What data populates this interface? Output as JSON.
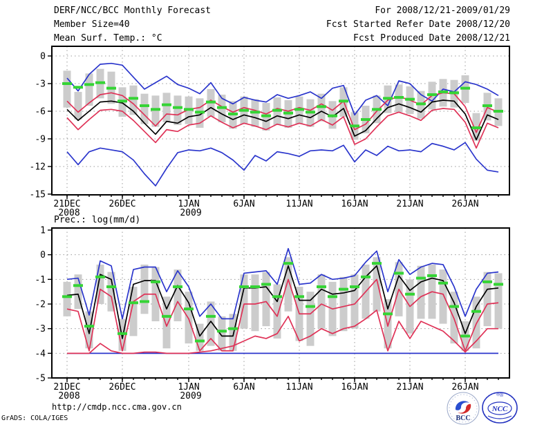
{
  "header": {
    "title": "DERF/NCC/BCC Monthly Forecast",
    "member_size": "Member Size=40",
    "for_range": "For 2008/12/21-2009/01/29",
    "refer_date": "Fcst Started Refer Date 2008/12/20",
    "produced_date": "Fcst Produced Date 2008/12/21"
  },
  "footer": {
    "url": "http://cmdp.ncc.cma.gov.cn",
    "grads_credit": "GrADS: COLA/IGES",
    "bcc_logo_text": "BCC",
    "ncc_logo_text": "NCC"
  },
  "colors": {
    "blue": "#2a35cc",
    "red": "#df3156",
    "black": "#000000",
    "clim_green": "#35d435",
    "bar_gray": "#cccccc",
    "grid_gray": "#999999"
  },
  "chart_data": [
    {
      "type": "line",
      "name": "temperature",
      "title": "Mean Surf. Temp.: °C",
      "x_start": "2008/12/21",
      "x_end": "2009/01/29",
      "n_days": 40,
      "yticks": [
        0,
        -3,
        -6,
        -9,
        -12,
        -15
      ],
      "ylim": [
        -15,
        0.8
      ],
      "grid": true,
      "x_ticks": [
        {
          "day": 0,
          "label": "21DEC",
          "sub": "2008"
        },
        {
          "day": 5,
          "label": "26DEC"
        },
        {
          "day": 11,
          "label": "1JAN",
          "sub": "2009"
        },
        {
          "day": 16,
          "label": "6JAN"
        },
        {
          "day": 21,
          "label": "11JAN"
        },
        {
          "day": 26,
          "label": "16JAN"
        },
        {
          "day": 31,
          "label": "21JAN"
        },
        {
          "day": 36,
          "label": "26JAN"
        }
      ],
      "series": [
        {
          "name": "ensemble-max",
          "color": "blue",
          "values": [
            -2.4,
            -3.8,
            -2.0,
            -0.9,
            -0.8,
            -1.0,
            -2.3,
            -3.6,
            -2.9,
            -2.2,
            -3.1,
            -3.5,
            -4.1,
            -2.9,
            -4.6,
            -5.2,
            -4.5,
            -4.8,
            -5.0,
            -4.2,
            -4.6,
            -4.3,
            -3.9,
            -4.6,
            -3.5,
            -3.2,
            -6.4,
            -4.8,
            -4.3,
            -5.4,
            -2.7,
            -3.0,
            -4.2,
            -4.9,
            -3.6,
            -3.9,
            -2.8,
            -3.1,
            -3.6,
            -4.3
          ]
        },
        {
          "name": "ensemble-min",
          "color": "blue",
          "values": [
            -10.4,
            -11.8,
            -10.4,
            -10.0,
            -10.2,
            -10.4,
            -11.3,
            -12.8,
            -14.1,
            -12.2,
            -10.5,
            -10.2,
            -10.3,
            -10.0,
            -10.5,
            -11.3,
            -12.4,
            -10.8,
            -11.4,
            -10.4,
            -10.6,
            -10.9,
            -10.3,
            -10.2,
            -10.3,
            -9.7,
            -11.5,
            -10.2,
            -10.8,
            -9.8,
            -10.3,
            -10.2,
            -10.4,
            -9.5,
            -9.8,
            -10.2,
            -9.4,
            -11.2,
            -12.4,
            -12.6
          ]
        },
        {
          "name": "upper-quartile",
          "color": "red",
          "values": [
            -4.9,
            -6.1,
            -5.1,
            -4.2,
            -4.0,
            -4.3,
            -5.2,
            -6.4,
            -7.6,
            -6.3,
            -6.4,
            -5.8,
            -5.6,
            -4.8,
            -5.5,
            -6.1,
            -5.6,
            -5.9,
            -6.3,
            -5.7,
            -6.0,
            -5.6,
            -5.9,
            -5.2,
            -5.9,
            -4.9,
            -8.0,
            -7.4,
            -6.0,
            -4.8,
            -4.4,
            -4.8,
            -5.3,
            -4.3,
            -4.0,
            -4.1,
            -5.5,
            -8.3,
            -5.6,
            -6.1
          ]
        },
        {
          "name": "lower-quartile",
          "color": "red",
          "values": [
            -6.7,
            -8.0,
            -6.9,
            -5.9,
            -5.8,
            -6.0,
            -7.0,
            -8.2,
            -9.4,
            -8.0,
            -8.2,
            -7.5,
            -7.3,
            -6.5,
            -7.2,
            -7.8,
            -7.3,
            -7.6,
            -8.0,
            -7.4,
            -7.7,
            -7.3,
            -7.6,
            -6.9,
            -7.5,
            -6.6,
            -9.6,
            -9.0,
            -7.7,
            -6.5,
            -6.1,
            -6.5,
            -7.0,
            -5.9,
            -5.7,
            -5.8,
            -7.2,
            -10.0,
            -7.3,
            -7.8
          ]
        },
        {
          "name": "ensemble-mean",
          "color": "black",
          "values": [
            -5.8,
            -7.0,
            -6.0,
            -5.0,
            -4.9,
            -5.1,
            -6.0,
            -7.3,
            -8.5,
            -7.1,
            -7.3,
            -6.6,
            -6.4,
            -5.6,
            -6.3,
            -6.9,
            -6.4,
            -6.7,
            -7.1,
            -6.5,
            -6.8,
            -6.4,
            -6.7,
            -6.0,
            -6.6,
            -5.7,
            -8.7,
            -8.1,
            -6.8,
            -5.6,
            -5.2,
            -5.6,
            -6.1,
            -5.0,
            -4.8,
            -4.9,
            -6.3,
            -9.1,
            -6.4,
            -6.9
          ]
        }
      ],
      "climatology_dashes": [
        -3.0,
        -3.4,
        -3.1,
        -2.9,
        -3.5,
        -4.9,
        -4.6,
        -5.4,
        -5.8,
        -5.3,
        -5.6,
        -5.8,
        -6.1,
        -5.0,
        -5.6,
        -6.3,
        -5.9,
        -6.1,
        -6.5,
        -5.9,
        -6.2,
        -5.8,
        -6.1,
        -5.5,
        -6.5,
        -4.9,
        -7.6,
        -6.9,
        -5.8,
        -4.6,
        -4.5,
        -4.7,
        -5.2,
        -4.2,
        -3.9,
        -4.0,
        -3.5,
        -7.8,
        -5.4,
        -6.0
      ],
      "spread_bar_top": [
        -1.6,
        -3.9,
        -1.9,
        -1.4,
        -1.7,
        -3.4,
        -3.2,
        -4.1,
        -4.3,
        -4.0,
        -4.3,
        -4.4,
        -4.6,
        -3.6,
        -4.2,
        -4.9,
        -4.4,
        -4.7,
        -5.1,
        -4.5,
        -4.8,
        -4.4,
        -4.7,
        -4.1,
        -4.9,
        -3.4,
        -6.1,
        -5.4,
        -4.3,
        -3.2,
        -3.1,
        -3.3,
        -3.8,
        -2.8,
        -2.5,
        -2.6,
        -2.1,
        -6.2,
        -4.0,
        -4.6
      ],
      "spread_bar_bottom": [
        -5.6,
        -6.9,
        -5.4,
        -4.6,
        -5.2,
        -6.6,
        -6.4,
        -7.4,
        -7.7,
        -7.2,
        -7.5,
        -7.4,
        -7.8,
        -6.6,
        -7.2,
        -7.9,
        -7.4,
        -7.7,
        -8.1,
        -7.5,
        -7.8,
        -7.4,
        -7.7,
        -7.1,
        -7.9,
        -6.6,
        -9.1,
        -8.4,
        -7.3,
        -6.2,
        -6.1,
        -6.3,
        -6.8,
        -5.8,
        -5.5,
        -5.6,
        -5.1,
        -9.2,
        -7.0,
        -7.6
      ]
    },
    {
      "type": "line",
      "name": "precipitation",
      "title": "Prec.: log(mm/d)",
      "x_start": "2008/12/21",
      "x_end": "2009/01/29",
      "n_days": 40,
      "yticks": [
        1,
        0,
        -1,
        -2,
        -3,
        -4,
        -5
      ],
      "ylim": [
        -5,
        1.1
      ],
      "grid": true,
      "x_ticks": [
        {
          "day": 0,
          "label": "21DEC",
          "sub": "2008"
        },
        {
          "day": 5,
          "label": "26DEC"
        },
        {
          "day": 11,
          "label": "1JAN",
          "sub": "2009"
        },
        {
          "day": 16,
          "label": "6JAN"
        },
        {
          "day": 21,
          "label": "11JAN"
        },
        {
          "day": 26,
          "label": "16JAN"
        },
        {
          "day": 31,
          "label": "21JAN"
        },
        {
          "day": 36,
          "label": "26JAN"
        }
      ],
      "series": [
        {
          "name": "ensemble-max",
          "color": "blue",
          "values": [
            -1.0,
            -0.95,
            -2.45,
            -0.25,
            -0.45,
            -2.6,
            -0.6,
            -0.5,
            -0.5,
            -1.5,
            -0.65,
            -1.3,
            -2.5,
            -2.0,
            -2.6,
            -2.6,
            -0.75,
            -0.7,
            -0.65,
            -1.2,
            0.25,
            -1.2,
            -1.15,
            -0.8,
            -1.0,
            -0.95,
            -0.85,
            -0.3,
            0.15,
            -1.5,
            -0.2,
            -0.8,
            -0.5,
            -0.35,
            -0.4,
            -1.3,
            -2.5,
            -1.4,
            -0.75,
            -0.7
          ]
        },
        {
          "name": "ensemble-min",
          "color": "blue",
          "values": [
            -4,
            -4,
            -4,
            -4,
            -4,
            -4,
            -4,
            -4,
            -4,
            -4,
            -4,
            -4,
            -4,
            -4,
            -4,
            -4,
            -4,
            -4,
            -4,
            -4,
            -4,
            -4,
            -4,
            -4,
            -4,
            -4,
            -4,
            -4,
            -4,
            -4,
            -4,
            -4,
            -4,
            -4,
            -4,
            -4,
            -4,
            -4,
            -4,
            -4
          ]
        },
        {
          "name": "upper-quartile",
          "color": "red",
          "values": [
            -2.2,
            -2.3,
            -3.9,
            -1.4,
            -1.7,
            -3.9,
            -1.9,
            -1.6,
            -1.6,
            -2.9,
            -1.9,
            -2.6,
            -3.9,
            -3.4,
            -3.9,
            -3.9,
            -2.0,
            -2.0,
            -1.9,
            -2.5,
            -1.0,
            -2.4,
            -2.4,
            -2.0,
            -2.2,
            -2.1,
            -2.0,
            -1.5,
            -1.0,
            -2.9,
            -1.4,
            -2.1,
            -1.7,
            -1.5,
            -1.6,
            -2.6,
            -3.9,
            -2.8,
            -2.0,
            -1.95
          ]
        },
        {
          "name": "lower-quartile",
          "color": "red",
          "values": [
            -4,
            -4,
            -4,
            -3.6,
            -3.9,
            -4,
            -4,
            -3.95,
            -3.95,
            -4,
            -4,
            -4,
            -3.95,
            -3.9,
            -3.8,
            -3.7,
            -3.5,
            -3.3,
            -3.4,
            -3.2,
            -2.5,
            -3.5,
            -3.3,
            -3.0,
            -3.2,
            -3.0,
            -2.9,
            -2.6,
            -2.25,
            -3.9,
            -2.7,
            -3.4,
            -2.7,
            -2.9,
            -3.1,
            -3.5,
            -3.95,
            -3.5,
            -3.0,
            -3.0
          ]
        },
        {
          "name": "ensemble-mean",
          "color": "black",
          "values": [
            -1.65,
            -1.6,
            -3.2,
            -0.8,
            -1.0,
            -3.4,
            -1.2,
            -1.05,
            -1.05,
            -2.2,
            -1.25,
            -1.95,
            -3.3,
            -2.7,
            -3.3,
            -3.3,
            -1.35,
            -1.35,
            -1.3,
            -1.9,
            -0.45,
            -1.85,
            -1.85,
            -1.4,
            -1.6,
            -1.55,
            -1.45,
            -0.9,
            -0.45,
            -2.2,
            -0.85,
            -1.45,
            -1.1,
            -0.95,
            -1.05,
            -1.95,
            -3.2,
            -2.1,
            -1.4,
            -1.35
          ]
        }
      ],
      "climatology_dashes": [
        -1.7,
        -1.25,
        -2.9,
        -0.9,
        -1.3,
        -3.2,
        -1.95,
        -1.9,
        -1.1,
        -2.5,
        -1.3,
        -2.2,
        -3.5,
        -2.5,
        -3.1,
        -3.0,
        -1.3,
        -1.3,
        -1.2,
        -1.7,
        -0.35,
        -1.7,
        -2.1,
        -1.3,
        -1.7,
        -1.4,
        -1.3,
        -0.9,
        -0.35,
        -2.4,
        -0.75,
        -1.6,
        -0.95,
        -0.85,
        -1.15,
        -2.1,
        -3.3,
        -2.3,
        -1.1,
        -1.2
      ],
      "spread_bar_top": [
        -1.1,
        -0.8,
        -2.3,
        -0.4,
        -0.7,
        -2.6,
        -1.3,
        -0.4,
        -0.5,
        -1.7,
        -0.6,
        -1.5,
        -2.8,
        -1.9,
        -2.5,
        -2.4,
        -0.8,
        -0.8,
        -0.7,
        -1.2,
        -0.1,
        -1.3,
        -1.5,
        -0.8,
        -1.1,
        -0.9,
        -0.8,
        -0.4,
        -0.1,
        -1.8,
        -0.3,
        -1.0,
        -0.45,
        -0.4,
        -0.6,
        -1.5,
        -2.7,
        -1.7,
        -0.7,
        -0.75
      ],
      "spread_bar_bottom": [
        -2.5,
        -2.2,
        -3.8,
        -2.0,
        -2.3,
        -3.9,
        -3.3,
        -2.4,
        -2.7,
        -3.8,
        -2.7,
        -3.6,
        -3.9,
        -3.7,
        -3.9,
        -3.9,
        -3.0,
        -3.1,
        -2.9,
        -3.4,
        -2.3,
        -3.5,
        -3.7,
        -3.0,
        -3.3,
        -3.1,
        -3.0,
        -2.6,
        -2.3,
        -3.8,
        -2.5,
        -3.2,
        -2.6,
        -2.6,
        -2.8,
        -3.6,
        -3.9,
        -3.8,
        -2.9,
        -3.0
      ]
    }
  ]
}
